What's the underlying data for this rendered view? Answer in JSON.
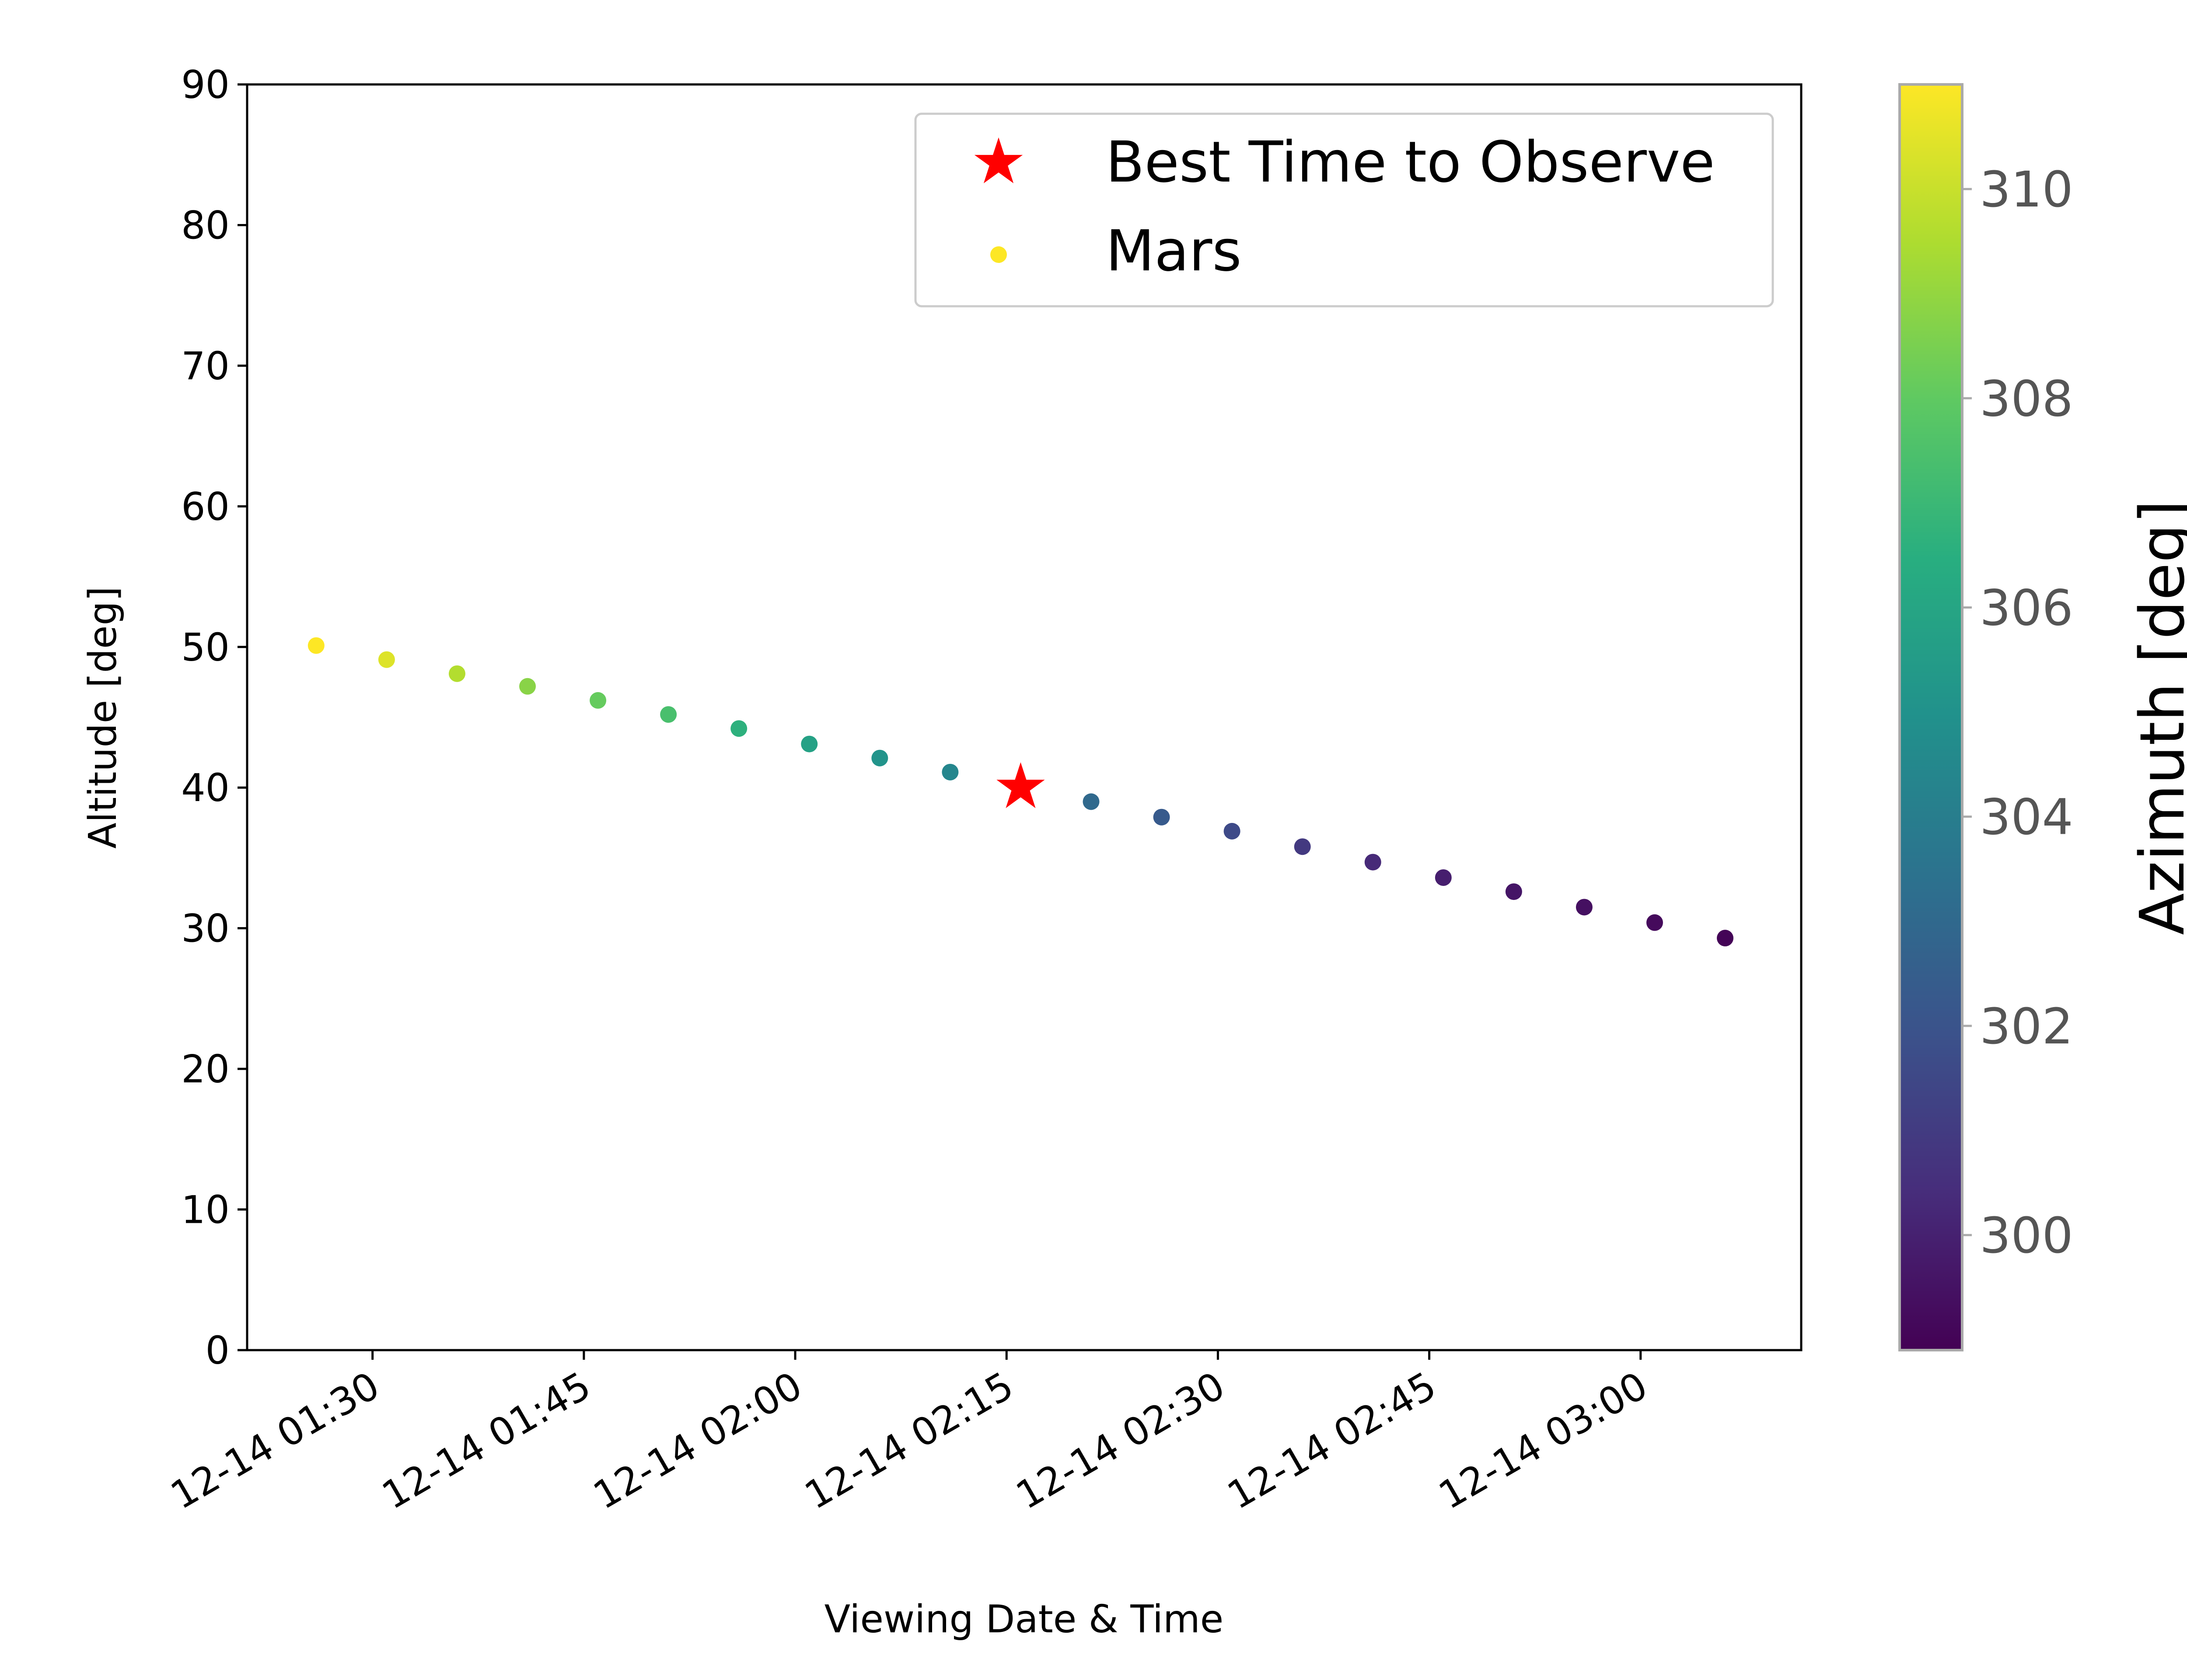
{
  "chart_data": {
    "type": "scatter",
    "xlabel": "Viewing Date & Time",
    "ylabel": "Altitude [deg]",
    "ylim": [
      0,
      90
    ],
    "y_ticks": [
      0,
      10,
      20,
      30,
      40,
      50,
      60,
      70,
      80,
      90
    ],
    "xlim": [
      "12-14 01:21:06",
      "12-14 03:11:24"
    ],
    "x_ticks": [
      "12-14 01:30",
      "12-14 01:45",
      "12-14 02:00",
      "12-14 02:15",
      "12-14 02:30",
      "12-14 02:45",
      "12-14 03:00"
    ],
    "grid": false,
    "legend": {
      "position": "top-right",
      "entries": [
        "Best Time to Observe",
        "Mars"
      ]
    },
    "series": [
      {
        "name": "Mars",
        "color_by": "azimuth",
        "x": [
          "12-14 01:26:00",
          "12-14 01:31:00",
          "12-14 01:36:00",
          "12-14 01:41:00",
          "12-14 01:46:00",
          "12-14 01:51:00",
          "12-14 01:56:00",
          "12-14 02:01:00",
          "12-14 02:06:00",
          "12-14 02:11:00",
          "12-14 02:21:00",
          "12-14 02:26:00",
          "12-14 02:31:00",
          "12-14 02:36:00",
          "12-14 02:41:00",
          "12-14 02:46:00",
          "12-14 02:51:00",
          "12-14 02:56:00",
          "12-14 03:01:00",
          "12-14 03:06:00"
        ],
        "y": [
          50.1,
          49.1,
          48.1,
          47.2,
          46.2,
          45.2,
          44.2,
          43.1,
          42.1,
          41.1,
          39.0,
          37.9,
          36.9,
          35.8,
          34.7,
          33.6,
          32.6,
          31.5,
          30.4,
          29.3
        ],
        "azimuth": [
          311.0,
          310.4,
          309.6,
          308.8,
          308.1,
          307.4,
          306.6,
          305.8,
          305.1,
          304.4,
          303.0,
          302.3,
          301.6,
          300.9,
          300.3,
          299.9,
          299.6,
          299.4,
          299.2,
          299.0
        ]
      },
      {
        "name": "Best Time to Observe",
        "marker": "star",
        "color": "#ff0000",
        "x": [
          "12-14 02:16:00"
        ],
        "y": [
          40.0
        ]
      }
    ],
    "colorbar": {
      "label": "Azimuth [deg]",
      "range": [
        298.9,
        311.0
      ],
      "ticks": [
        300,
        302,
        304,
        306,
        308,
        310
      ],
      "colormap": "viridis"
    }
  }
}
